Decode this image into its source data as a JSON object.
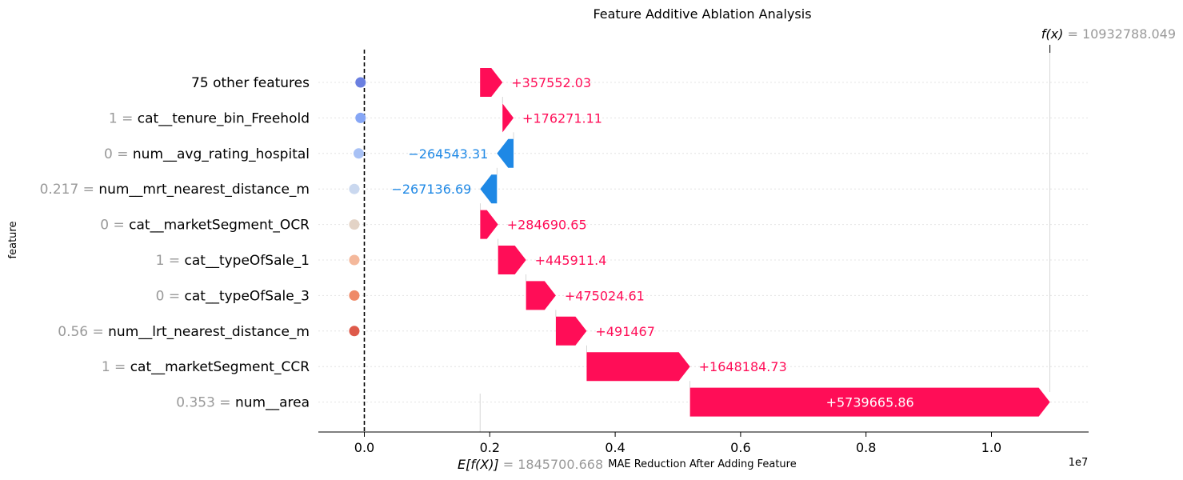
{
  "chart_data": {
    "type": "waterfall",
    "title": "Feature Additive Ablation Analysis",
    "xlabel": "MAE Reduction After Adding Feature",
    "ylabel": "feature",
    "x_ticks": [
      "0.0",
      "0.2",
      "0.4",
      "0.6",
      "0.8",
      "1.0"
    ],
    "x_tick_values": [
      0,
      2000000,
      4000000,
      6000000,
      8000000,
      10000000
    ],
    "x_scale_label": "1e7",
    "xlim": [
      -750000,
      11550000
    ],
    "grid": true,
    "base_value": 1845700.668,
    "base_label": {
      "func": "E[f(X)]",
      "value": "1845700.668"
    },
    "final_value": 10932788.049,
    "final_label": {
      "func": "f(x)",
      "value": "10932788.049"
    },
    "features": [
      {
        "prefix": "",
        "name": "75 other features",
        "contribution": 357552.03,
        "label": "+357552.03",
        "start": 1845700.668,
        "dot_x": -60000,
        "dot_color": "#6a7fe0"
      },
      {
        "prefix": "1 = ",
        "name": "cat__tenure_bin_Freehold",
        "contribution": 176271.11,
        "label": "+176271.11",
        "start": 2203252.698,
        "dot_x": -60000,
        "dot_color": "#86a6f5"
      },
      {
        "prefix": "0 = ",
        "name": "num__avg_rating_hospital",
        "contribution": -264543.31,
        "label": "−264543.31",
        "start": 2379523.808,
        "dot_x": -90000,
        "dot_color": "#a8c1f5"
      },
      {
        "prefix": "0.217 = ",
        "name": "num__mrt_nearest_distance_m",
        "contribution": -267136.69,
        "label": "−267136.69",
        "start": 2114980.498,
        "dot_x": -160000,
        "dot_color": "#cad8ef"
      },
      {
        "prefix": "0 = ",
        "name": "cat__marketSegment_OCR",
        "contribution": 284690.65,
        "label": "+284690.65",
        "start": 1847843.808,
        "dot_x": -160000,
        "dot_color": "#e3d3c6"
      },
      {
        "prefix": "1 = ",
        "name": "cat__typeOfSale_1",
        "contribution": 445911.4,
        "label": "+445911.4",
        "start": 2132534.458,
        "dot_x": -160000,
        "dot_color": "#f4b89b"
      },
      {
        "prefix": "0 = ",
        "name": "cat__typeOfSale_3",
        "contribution": 475024.61,
        "label": "+475024.61",
        "start": 2578445.858,
        "dot_x": -160000,
        "dot_color": "#ef8a68"
      },
      {
        "prefix": "0.56 = ",
        "name": "num__lrt_nearest_distance_m",
        "contribution": 491467,
        "label": "+491467",
        "start": 3053470.468,
        "dot_x": -160000,
        "dot_color": "#de5a4a"
      },
      {
        "prefix": "1 = ",
        "name": "cat__marketSegment_CCR",
        "contribution": 1648184.73,
        "label": "+1648184.73",
        "start": 3544937.468,
        "dot_x": null,
        "dot_color": null
      },
      {
        "prefix": "0.353 = ",
        "name": "num__area",
        "contribution": 5739665.86,
        "label": "+5739665.86",
        "start": 5193122.198,
        "dot_x": null,
        "dot_color": null
      }
    ],
    "colors": {
      "positive": "#ff0d57",
      "negative": "#1e88e5",
      "muted": "#999999",
      "text": "#000000"
    }
  }
}
